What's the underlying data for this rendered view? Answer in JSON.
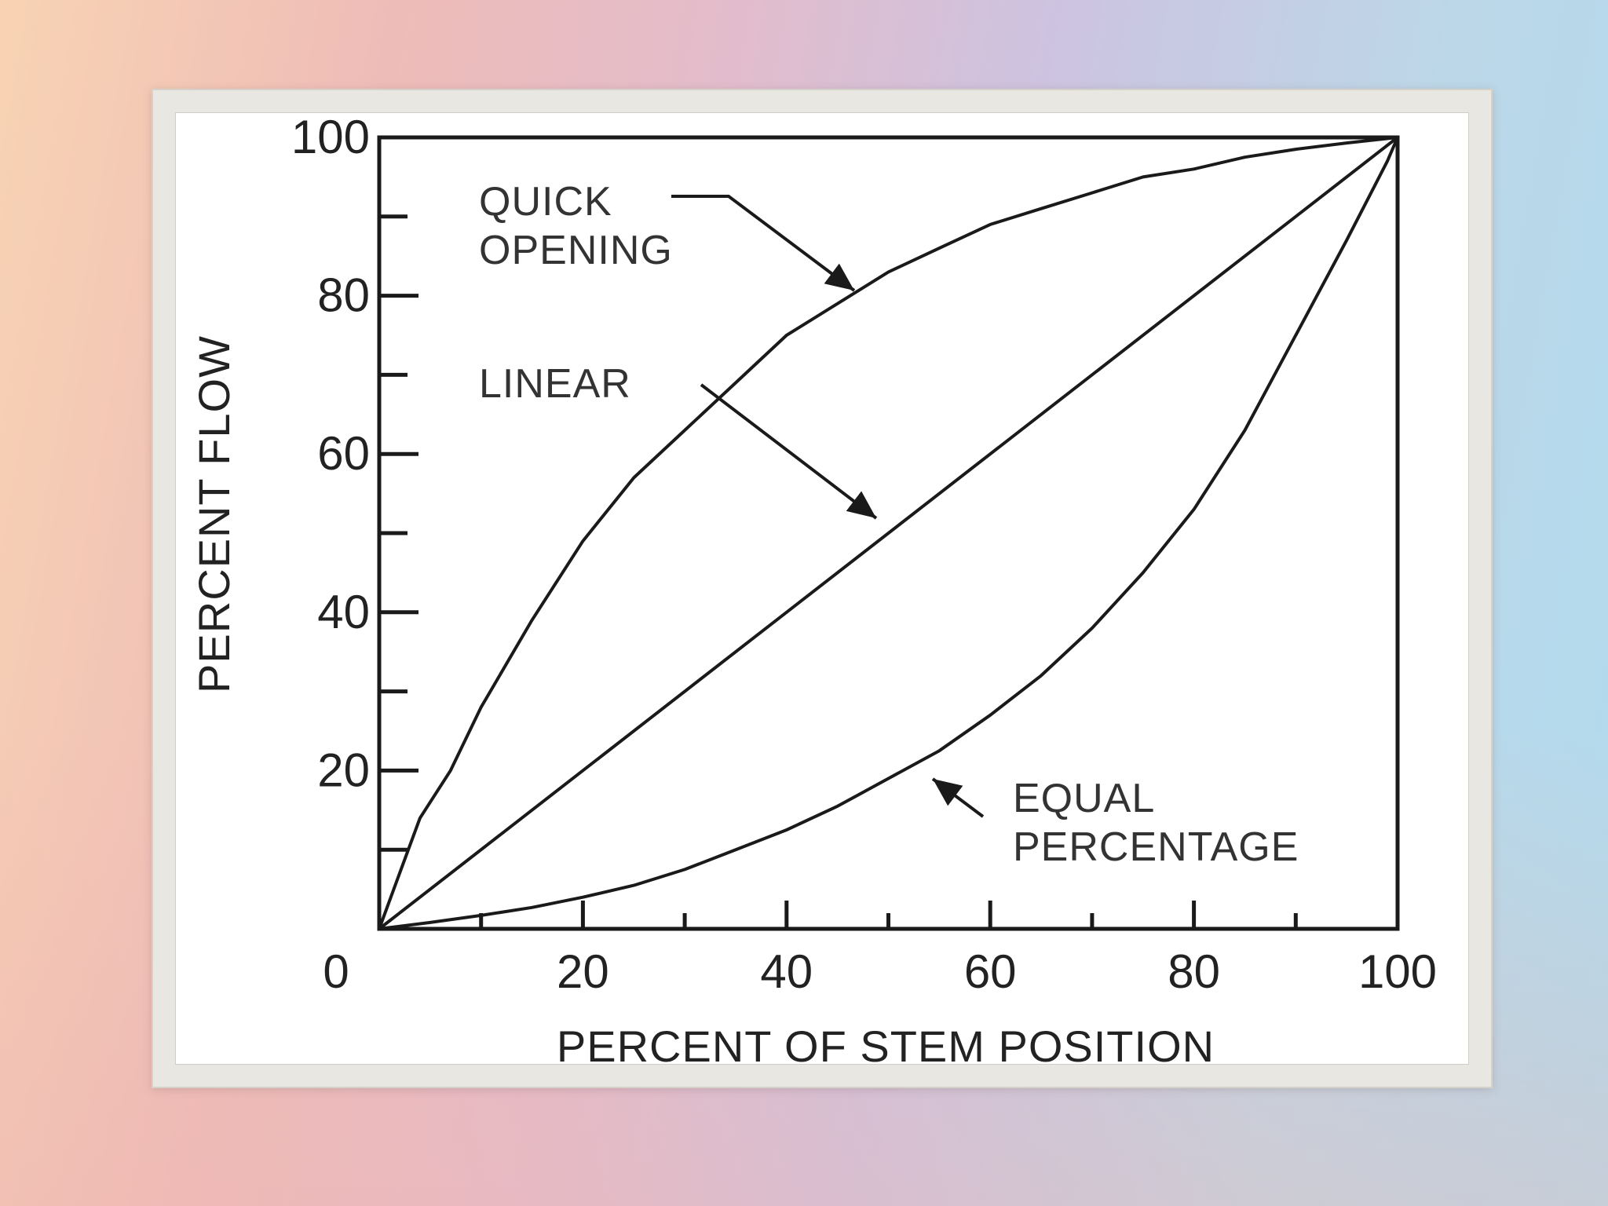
{
  "chart_data": {
    "type": "line",
    "xlabel": "PERCENT OF STEM POSITION",
    "ylabel": "PERCENT FLOW",
    "xlim": [
      0,
      100
    ],
    "ylim": [
      0,
      100
    ],
    "x_tick_labels": [
      "0",
      "20",
      "40",
      "60",
      "80",
      "100"
    ],
    "y_tick_labels": [
      "20",
      "40",
      "60",
      "80",
      "100"
    ],
    "grid": false,
    "series": [
      {
        "name": "QUICK OPENING",
        "x": [
          0,
          2,
          4,
          7,
          10,
          15,
          20,
          25,
          30,
          35,
          40,
          45,
          50,
          55,
          60,
          65,
          70,
          75,
          80,
          85,
          90,
          95,
          100
        ],
        "y": [
          0,
          7,
          14,
          20,
          28,
          39,
          49,
          57,
          63,
          69,
          75,
          79,
          83,
          86,
          89,
          91,
          93,
          95,
          96,
          97.5,
          98.5,
          99.3,
          100
        ]
      },
      {
        "name": "LINEAR",
        "x": [
          0,
          100
        ],
        "y": [
          0,
          100
        ]
      },
      {
        "name": "EQUAL PERCENTAGE",
        "x": [
          0,
          5,
          10,
          15,
          20,
          25,
          30,
          35,
          40,
          45,
          50,
          55,
          60,
          65,
          70,
          75,
          80,
          85,
          90,
          95,
          97,
          99,
          100
        ],
        "y": [
          0,
          0.8,
          1.7,
          2.7,
          4,
          5.5,
          7.5,
          10,
          12.5,
          15.5,
          19,
          22.5,
          27,
          32,
          38,
          45,
          53,
          63,
          75,
          87,
          92,
          97,
          100
        ]
      }
    ],
    "annotations": [
      {
        "lines": [
          "QUICK",
          "OPENING"
        ],
        "target_series": "QUICK OPENING"
      },
      {
        "lines": [
          "LINEAR"
        ],
        "target_series": "LINEAR"
      },
      {
        "lines": [
          "EQUAL",
          "PERCENTAGE"
        ],
        "target_series": "EQUAL PERCENTAGE"
      }
    ],
    "colors": {
      "line": "#1a1a1a",
      "frame": "#e8e7e1",
      "paper": "#ffffff"
    }
  }
}
